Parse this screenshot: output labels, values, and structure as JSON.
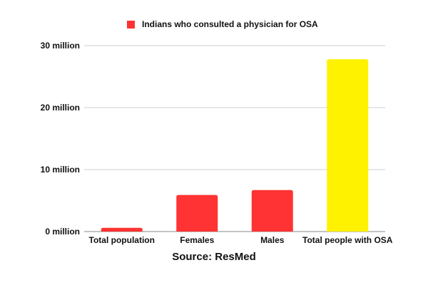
{
  "chart_data": {
    "type": "bar",
    "legend": [
      {
        "label": "Indians who consulted a physician for OSA",
        "color": "#ff3333"
      }
    ],
    "categories": [
      "Total population",
      "Females",
      "Males",
      "Total people with OSA"
    ],
    "values": [
      0.6,
      5.9,
      6.7,
      27.8
    ],
    "colors": [
      "#ff3333",
      "#ff3333",
      "#ff3333",
      "#fff200"
    ],
    "unit": "million",
    "yticks": [
      {
        "value": 0,
        "label": "0 million"
      },
      {
        "value": 10,
        "label": "10 million"
      },
      {
        "value": 20,
        "label": "20 million"
      },
      {
        "value": 30,
        "label": "30 million"
      }
    ],
    "ylim": [
      0,
      30
    ],
    "grid": true,
    "legend_position": "top"
  },
  "source": "Source: ResMed"
}
